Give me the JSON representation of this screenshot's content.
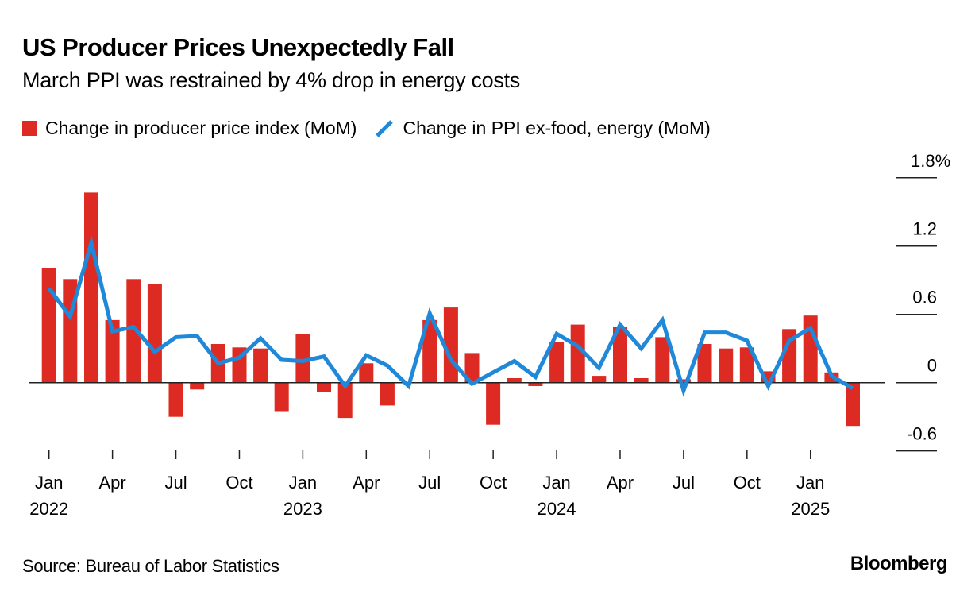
{
  "header": {
    "title": "US Producer Prices Unexpectedly Fall",
    "subtitle": "March PPI was restrained by 4% drop in energy costs"
  },
  "legend": {
    "bar_label": "Change in producer price index (MoM)",
    "line_label": "Change in PPI ex-food, energy (MoM)"
  },
  "footer": {
    "source": "Source: Bureau of Labor Statistics",
    "brand": "Bloomberg"
  },
  "colors": {
    "bar": "#dd2a22",
    "line": "#1f88d9",
    "axis": "#222222"
  },
  "chart_data": {
    "type": "bar",
    "title": "US Producer Prices Unexpectedly Fall",
    "subtitle": "March PPI was restrained by 4% drop in energy costs",
    "xlabel": "",
    "ylabel": "",
    "ylim": [
      -0.6,
      1.8
    ],
    "y_ticks": [
      1.8,
      1.2,
      0.6,
      0,
      -0.6
    ],
    "y_tick_labels": [
      "1.8%",
      "1.2",
      "0.6",
      "0",
      "-0.6"
    ],
    "y_axis_side": "right",
    "grid": false,
    "legend_position": "top-left",
    "x_ticks": [
      {
        "month_index": 0,
        "label": "Jan",
        "year": "2022"
      },
      {
        "month_index": 3,
        "label": "Apr",
        "year": ""
      },
      {
        "month_index": 6,
        "label": "Jul",
        "year": ""
      },
      {
        "month_index": 9,
        "label": "Oct",
        "year": ""
      },
      {
        "month_index": 12,
        "label": "Jan",
        "year": "2023"
      },
      {
        "month_index": 15,
        "label": "Apr",
        "year": ""
      },
      {
        "month_index": 18,
        "label": "Jul",
        "year": ""
      },
      {
        "month_index": 21,
        "label": "Oct",
        "year": ""
      },
      {
        "month_index": 24,
        "label": "Jan",
        "year": "2024"
      },
      {
        "month_index": 27,
        "label": "Apr",
        "year": ""
      },
      {
        "month_index": 30,
        "label": "Jul",
        "year": ""
      },
      {
        "month_index": 33,
        "label": "Oct",
        "year": ""
      },
      {
        "month_index": 36,
        "label": "Jan",
        "year": "2025"
      }
    ],
    "categories": [
      "2022-01",
      "2022-02",
      "2022-03",
      "2022-04",
      "2022-05",
      "2022-06",
      "2022-07",
      "2022-08",
      "2022-09",
      "2022-10",
      "2022-11",
      "2022-12",
      "2023-01",
      "2023-02",
      "2023-03",
      "2023-04",
      "2023-05",
      "2023-06",
      "2023-07",
      "2023-08",
      "2023-09",
      "2023-10",
      "2023-11",
      "2023-12",
      "2024-01",
      "2024-02",
      "2024-03",
      "2024-04",
      "2024-05",
      "2024-06",
      "2024-07",
      "2024-08",
      "2024-09",
      "2024-10",
      "2024-11",
      "2024-12",
      "2025-01",
      "2025-02",
      "2025-03"
    ],
    "series": [
      {
        "name": "Change in producer price index (MoM)",
        "type": "bar",
        "values": [
          1.01,
          0.91,
          1.67,
          0.55,
          0.91,
          0.87,
          -0.3,
          -0.06,
          0.34,
          0.31,
          0.3,
          -0.25,
          0.43,
          -0.08,
          -0.31,
          0.17,
          -0.2,
          0.0,
          0.55,
          0.66,
          0.26,
          -0.37,
          0.04,
          -0.03,
          0.36,
          0.51,
          0.06,
          0.49,
          0.04,
          0.4,
          0.03,
          0.34,
          0.3,
          0.31,
          0.1,
          0.47,
          0.59,
          0.09,
          -0.38
        ]
      },
      {
        "name": "Change in PPI ex-food, energy (MoM)",
        "type": "line",
        "values": [
          0.83,
          0.58,
          1.23,
          0.45,
          0.49,
          0.27,
          0.4,
          0.41,
          0.17,
          0.22,
          0.39,
          0.2,
          0.19,
          0.23,
          -0.03,
          0.24,
          0.15,
          -0.03,
          0.61,
          0.2,
          -0.01,
          0.09,
          0.19,
          0.05,
          0.43,
          0.32,
          0.13,
          0.51,
          0.3,
          0.55,
          -0.07,
          0.44,
          0.44,
          0.37,
          -0.03,
          0.37,
          0.48,
          0.06,
          -0.05
        ]
      }
    ]
  }
}
